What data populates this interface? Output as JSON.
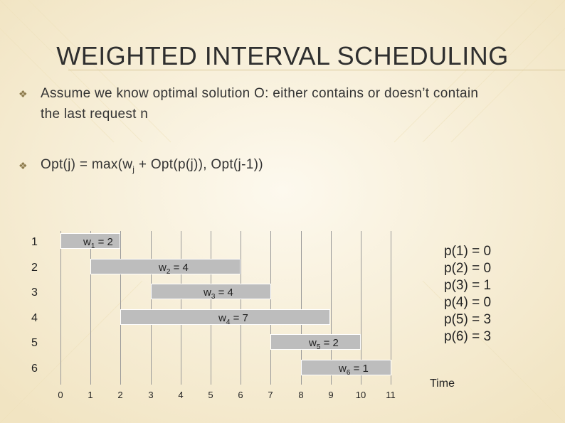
{
  "slide": {
    "title": "WEIGHTED INTERVAL SCHEDULING",
    "bullets": [
      {
        "line1": "Assume we know optimal solution O: either contains or doesn’t contain",
        "line2": "the last request n"
      },
      {
        "pre": "Opt(j) = max(w",
        "sub": "j",
        "post": " + Opt(p(j)), Opt(j-1))"
      }
    ]
  },
  "diagram": {
    "rows": [
      {
        "label": "1",
        "w_base": "w",
        "w_sub": "1",
        "w_val": " = 2",
        "start": 0,
        "end": 2
      },
      {
        "label": "2",
        "w_base": "w",
        "w_sub": "2",
        "w_val": " = 4",
        "start": 1,
        "end": 6
      },
      {
        "label": "3",
        "w_base": "w",
        "w_sub": "3",
        "w_val": " = 4",
        "start": 3,
        "end": 7
      },
      {
        "label": "4",
        "w_base": "w",
        "w_sub": "4",
        "w_val": " = 7",
        "start": 2,
        "end": 9
      },
      {
        "label": "5",
        "w_base": "w",
        "w_sub": "5",
        "w_val": " = 2",
        "start": 7,
        "end": 10
      },
      {
        "label": "6",
        "w_base": "w",
        "w_sub": "6",
        "w_val": " = 1",
        "start": 8,
        "end": 11
      }
    ],
    "ticks": [
      "0",
      "1",
      "2",
      "3",
      "4",
      "5",
      "6",
      "7",
      "8",
      "9",
      "10",
      "11"
    ],
    "time_label": "Time",
    "p_values": [
      "p(1) = 0",
      "p(2) = 0",
      "p(3) = 1",
      "p(4) = 0",
      "p(5) = 3",
      "p(6) = 3"
    ]
  },
  "colors": {
    "bar": "#bdbdbd",
    "background": "#f8f1df"
  }
}
